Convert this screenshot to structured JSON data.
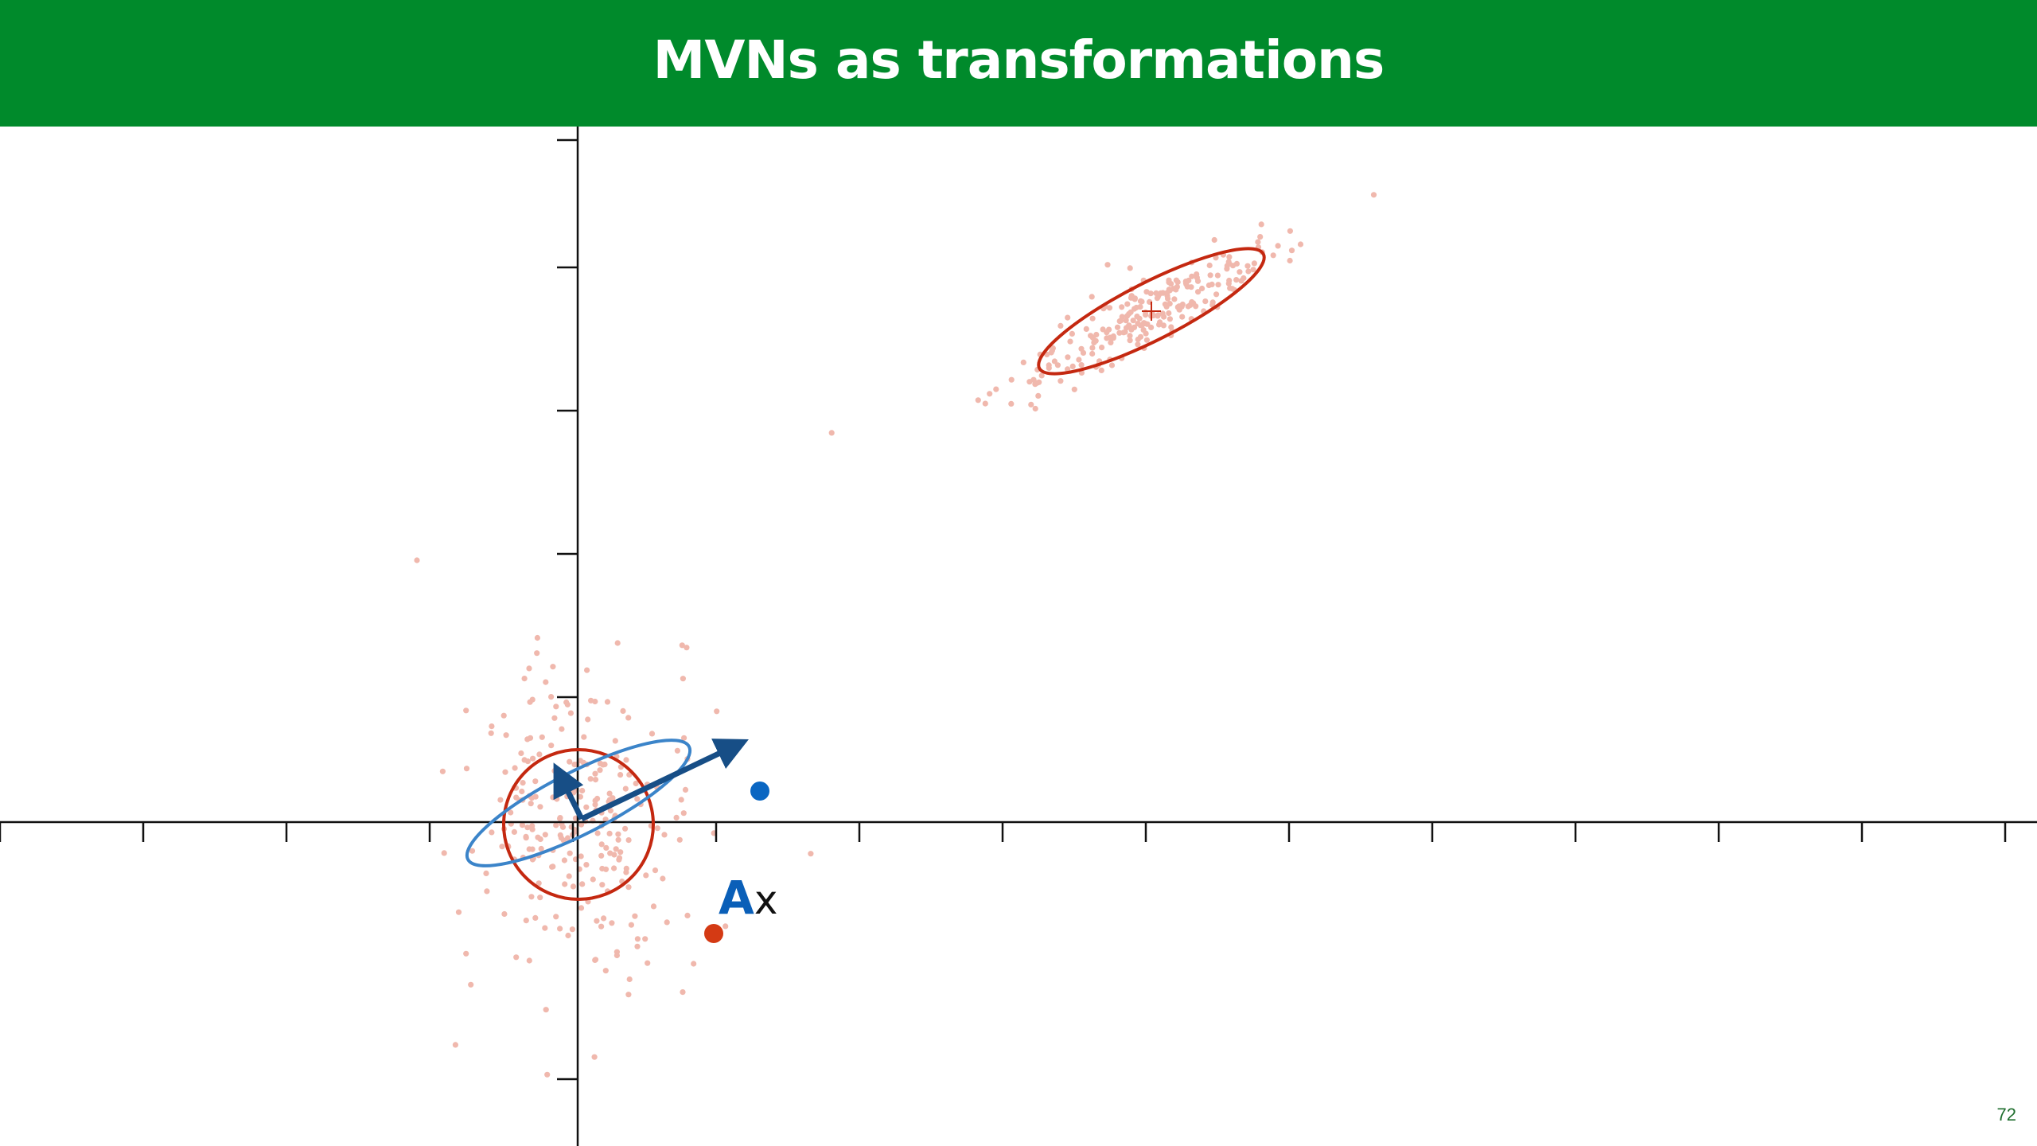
{
  "slide": {
    "title": "MVNs as transformations",
    "page_number": "72",
    "label_matrix": "A",
    "label_vector": "x"
  },
  "colors": {
    "title_bar": "#008a2b",
    "title_text": "#ffffff",
    "axis": "#111111",
    "samples": "#f0b8ad",
    "red_ellipse": "#c42810",
    "blue_ellipse": "#3b84c9",
    "arrow": "#174e86",
    "point_x": "#d43a14",
    "point_Ax": "#0a66c2",
    "label_A": "#0a5fb8",
    "label_x": "#111111",
    "page_number": "#1f6e2e"
  },
  "icons": [
    "arrow-vector",
    "mean-cross-marker"
  ]
}
